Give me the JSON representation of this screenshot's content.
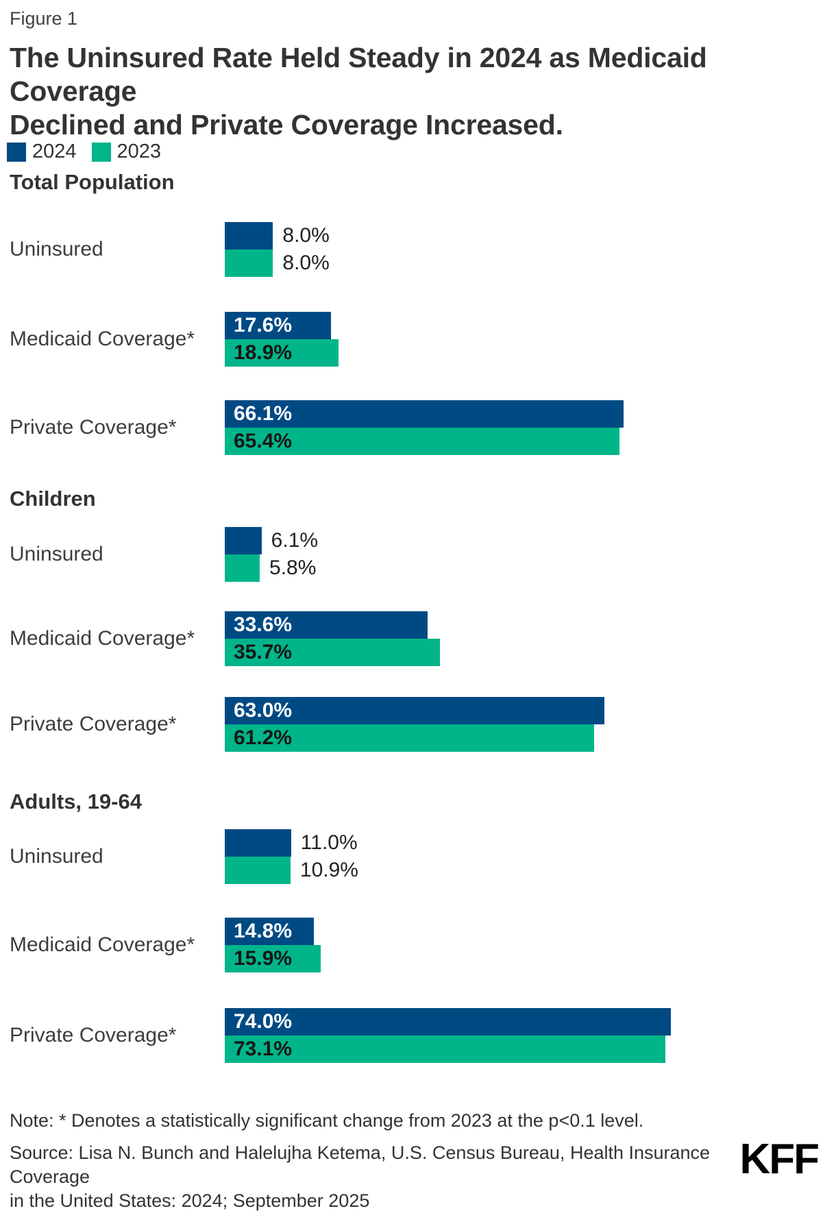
{
  "figure_label": "Figure 1",
  "title": "The Uninsured Rate Held Steady in 2024 as Medicaid Coverage\nDeclined and Private Coverage Increased.",
  "legend": {
    "position": "top-left",
    "items": [
      {
        "label": "2024",
        "color": "#004a84"
      },
      {
        "label": "2023",
        "color": "#00b58a"
      }
    ]
  },
  "colors": {
    "series_2024": "#004a84",
    "series_2023": "#00b58a",
    "value_text_on_blue": "#ffffff",
    "value_text_on_green": "#161616",
    "value_text_outside": "#222222",
    "text_dark": "#333333"
  },
  "chart_data": {
    "type": "bar",
    "orientation": "horizontal",
    "unit": "%",
    "value_format": "one-decimal-percent",
    "series": [
      "2024",
      "2023"
    ],
    "grid": false,
    "axes_shown": false,
    "groups": [
      {
        "name": "Total Population",
        "rows": [
          {
            "label": "Uninsured",
            "values": [
              8.0,
              8.0
            ]
          },
          {
            "label": "Medicaid Coverage*",
            "values": [
              17.6,
              18.9
            ]
          },
          {
            "label": "Private Coverage*",
            "values": [
              66.1,
              65.4
            ]
          }
        ]
      },
      {
        "name": "Children",
        "rows": [
          {
            "label": "Uninsured",
            "values": [
              6.1,
              5.8
            ]
          },
          {
            "label": "Medicaid Coverage*",
            "values": [
              33.6,
              35.7
            ]
          },
          {
            "label": "Private Coverage*",
            "values": [
              63.0,
              61.2
            ]
          }
        ]
      },
      {
        "name": "Adults, 19-64",
        "rows": [
          {
            "label": "Uninsured",
            "values": [
              11.0,
              10.9
            ]
          },
          {
            "label": "Medicaid Coverage*",
            "values": [
              14.8,
              15.9
            ]
          },
          {
            "label": "Private Coverage*",
            "values": [
              74.0,
              73.1
            ]
          }
        ]
      }
    ]
  },
  "note": "Note: * Denotes a statistically significant change from 2023 at the p<0.1 level.",
  "source": "Source: Lisa N. Bunch and Halelujha Ketema, U.S. Census Bureau, Health Insurance Coverage\nin the United States: 2024; September 2025",
  "logo": "KFF"
}
